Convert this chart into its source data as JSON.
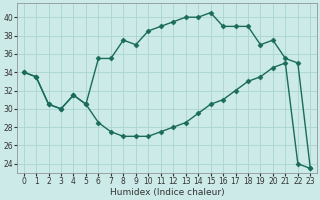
{
  "xlabel": "Humidex (Indice chaleur)",
  "background_color": "#cceae8",
  "grid_color": "#aad4d0",
  "line_color": "#1a6b5a",
  "xlim": [
    -0.5,
    23.5
  ],
  "ylim": [
    23,
    41.5
  ],
  "yticks": [
    24,
    26,
    28,
    30,
    32,
    34,
    36,
    38,
    40
  ],
  "xticks": [
    0,
    1,
    2,
    3,
    4,
    5,
    6,
    7,
    8,
    9,
    10,
    11,
    12,
    13,
    14,
    15,
    16,
    17,
    18,
    19,
    20,
    21,
    22,
    23
  ],
  "series1_x": [
    0,
    1,
    2,
    3,
    4,
    5,
    6,
    7,
    8,
    9,
    10,
    11,
    12,
    13,
    14,
    15,
    16,
    17,
    18,
    19,
    20,
    21,
    22,
    23
  ],
  "series1_y": [
    34.0,
    33.5,
    30.5,
    30.0,
    31.5,
    30.5,
    35.5,
    35.5,
    37.5,
    37.0,
    38.5,
    39.0,
    39.5,
    40.0,
    40.0,
    40.5,
    39.0,
    39.0,
    39.0,
    37.0,
    37.5,
    35.5,
    35.0,
    23.5
  ],
  "series2_x": [
    0,
    1,
    2,
    3,
    4,
    5,
    6,
    7,
    8,
    9,
    10,
    11,
    12,
    13,
    14,
    15,
    16,
    17,
    18,
    19,
    20,
    21,
    22,
    23
  ],
  "series2_y": [
    34.0,
    33.5,
    30.5,
    30.0,
    31.5,
    30.5,
    28.5,
    27.5,
    27.0,
    27.0,
    27.0,
    27.5,
    28.0,
    28.5,
    29.5,
    30.5,
    31.0,
    32.0,
    33.0,
    33.5,
    34.5,
    35.0,
    24.0,
    23.5
  ],
  "marker": "D",
  "markersize": 2.5,
  "linewidth": 1.0,
  "figwidth": 3.2,
  "figheight": 2.0,
  "dpi": 100,
  "tick_labelsize": 5.5,
  "xlabel_fontsize": 6.5
}
